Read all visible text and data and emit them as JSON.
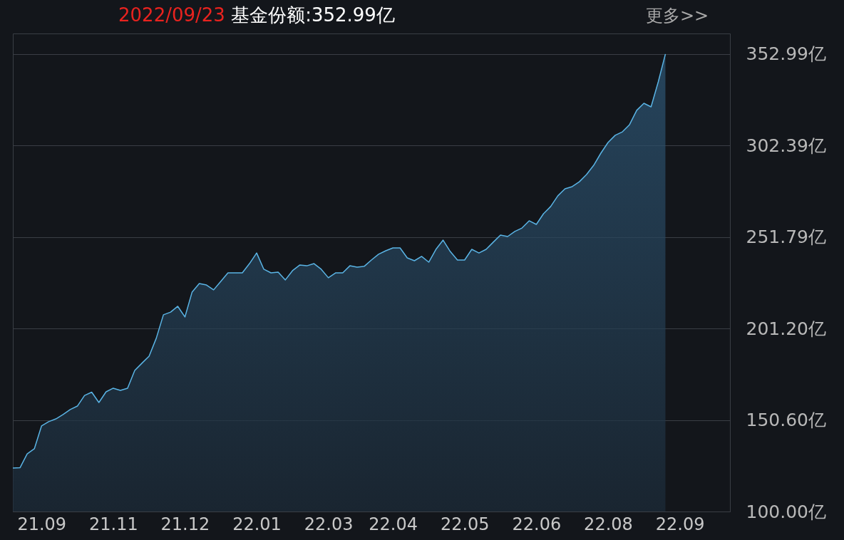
{
  "chart_data": {
    "type": "area",
    "title": "2022/09/23",
    "subtitle": "基金份额:352.99亿",
    "annotations": [
      "更多>>"
    ],
    "categories": [
      null,
      null,
      null,
      null,
      "21.09",
      null,
      null,
      null,
      null,
      null,
      null,
      null,
      null,
      null,
      "21.11",
      null,
      null,
      null,
      null,
      null,
      null,
      null,
      null,
      null,
      "21.12",
      null,
      null,
      null,
      null,
      null,
      null,
      null,
      null,
      null,
      "22.01",
      null,
      null,
      null,
      null,
      null,
      null,
      null,
      null,
      null,
      "22.03",
      null,
      null,
      null,
      null,
      null,
      null,
      null,
      null,
      "22.04",
      null,
      null,
      null,
      null,
      null,
      null,
      null,
      null,
      null,
      "22.05",
      null,
      null,
      null,
      null,
      null,
      null,
      null,
      null,
      null,
      "22.06",
      null,
      null,
      null,
      null,
      null,
      null,
      null,
      null,
      null,
      "22.08",
      null,
      null,
      null,
      null,
      null,
      null,
      null,
      null,
      null,
      "22.09",
      null,
      null,
      null,
      null,
      null,
      null,
      null
    ],
    "ylim": [
      100,
      364.4
    ],
    "yticks": [
      {
        "value": 100,
        "label": "100.00亿"
      },
      {
        "value": 150.6,
        "label": "150.60亿"
      },
      {
        "value": 201.2,
        "label": "201.20亿"
      },
      {
        "value": 251.79,
        "label": "251.79亿"
      },
      {
        "value": 302.39,
        "label": "302.39亿"
      },
      {
        "value": 352.99,
        "label": "352.99亿"
      }
    ],
    "grid": "y",
    "series": [
      {
        "color": "#5ab4e5",
        "values": [
          124.0,
          124.2,
          131.9,
          134.7,
          147.3,
          149.7,
          151.2,
          153.6,
          156.4,
          158.3,
          164.2,
          166.0,
          160.3,
          166.2,
          168.2,
          167.0,
          168.2,
          178.0,
          182.0,
          185.9,
          195.8,
          208.8,
          210.3,
          213.5,
          207.6,
          221.4,
          226.1,
          225.3,
          222.6,
          227.3,
          232.0,
          232.0,
          232.0,
          237.1,
          243.0,
          234.0,
          232.0,
          232.4,
          228.1,
          233.2,
          236.3,
          235.9,
          237.1,
          234.0,
          229.3,
          232.0,
          232.0,
          235.9,
          235.2,
          235.6,
          239.1,
          242.3,
          244.2,
          245.8,
          245.8,
          240.3,
          238.7,
          241.1,
          237.9,
          245.0,
          250.1,
          243.8,
          239.1,
          239.1,
          245.0,
          243.0,
          245.0,
          249.0,
          252.9,
          252.1,
          254.9,
          256.8,
          260.8,
          258.8,
          264.7,
          268.7,
          274.6,
          278.5,
          279.7,
          282.4,
          286.4,
          291.5,
          298.2,
          304.1,
          308.1,
          310.0,
          314.0,
          321.9,
          325.8,
          323.8,
          337.6,
          353.0,
          null,
          null,
          null,
          null,
          null,
          null,
          null,
          null,
          null
        ]
      }
    ]
  }
}
